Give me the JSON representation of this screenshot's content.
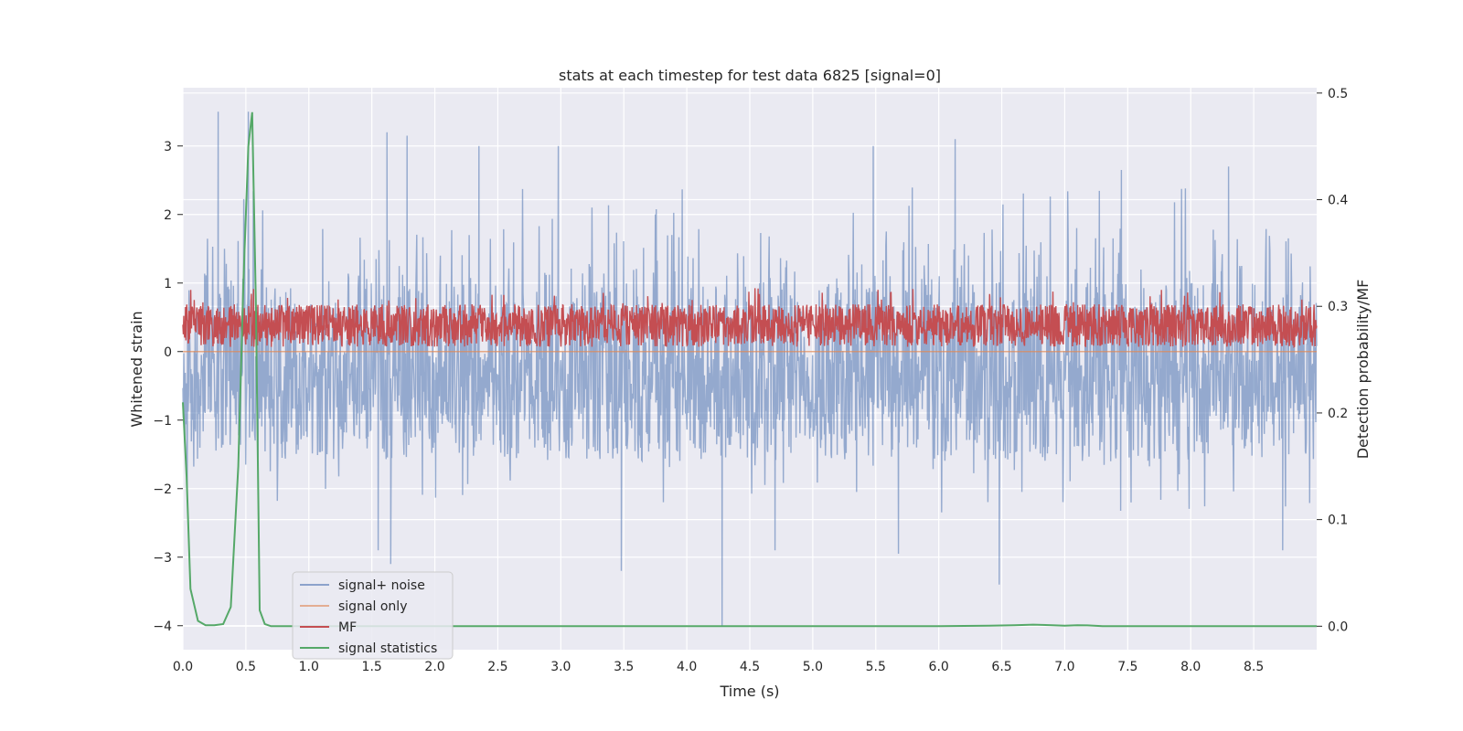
{
  "chart_data": {
    "type": "line",
    "title": "stats at each timestep for test data 6825 [signal=0]",
    "xlabel": "Time (s)",
    "ylabel_left": "Whitened strain",
    "ylabel_right": "Detection probability/MF",
    "xlim": [
      0.0,
      9.0
    ],
    "ylim_left": [
      -4.35,
      3.85
    ],
    "ylim_right": [
      -0.022,
      0.505
    ],
    "grid": true,
    "legend_position": "lower-left",
    "x_ticks": [
      "0.0",
      "0.5",
      "1.0",
      "1.5",
      "2.0",
      "2.5",
      "3.0",
      "3.5",
      "4.0",
      "4.5",
      "5.0",
      "5.5",
      "6.0",
      "6.5",
      "7.0",
      "7.5",
      "8.0",
      "8.5"
    ],
    "y_ticks_left": [
      "3",
      "2",
      "1",
      "0",
      "−1",
      "−2",
      "−3",
      "−4"
    ],
    "y_ticks_right": [
      "0.5",
      "0.4",
      "0.3",
      "0.2",
      "0.1",
      "0.0"
    ],
    "series": [
      {
        "name": "signal+ noise",
        "axis": "left",
        "color": "#4c72b0",
        "opacity": 0.55,
        "description_values": "dense noise centered near 0, mostly within [-1.7, 1.7], peaks up to 3.5 and down to -4.0",
        "band": [
          -1.7,
          1.7
        ],
        "spikes": [
          [
            0.28,
            3.5
          ],
          [
            1.62,
            3.2
          ],
          [
            1.78,
            3.15
          ],
          [
            4.28,
            -4.0
          ],
          [
            6.13,
            3.1
          ],
          [
            3.48,
            -3.2
          ],
          [
            6.48,
            -3.4
          ],
          [
            8.73,
            -2.9
          ],
          [
            0.52,
            3.5
          ],
          [
            2.35,
            3.0
          ],
          [
            2.98,
            3.0
          ],
          [
            5.48,
            3.0
          ],
          [
            7.45,
            2.65
          ],
          [
            8.3,
            2.7
          ],
          [
            1.55,
            -2.9
          ],
          [
            1.65,
            -3.1
          ],
          [
            5.68,
            -2.95
          ],
          [
            4.7,
            -2.9
          ]
        ]
      },
      {
        "name": "signal only",
        "axis": "left",
        "color": "#dd8452",
        "values_constant": 0.0
      },
      {
        "name": "MF",
        "axis": "right",
        "color": "#c44e52",
        "description_values": "noisy band between about 0.265 and 0.31 on the right axis, occasional peaks to 0.315",
        "band": [
          0.262,
          0.302
        ]
      },
      {
        "name": "signal statistics",
        "axis": "right",
        "color": "#55a868",
        "x": [
          0.0,
          0.03,
          0.06,
          0.12,
          0.18,
          0.25,
          0.32,
          0.38,
          0.44,
          0.48,
          0.52,
          0.55,
          0.58,
          0.61,
          0.65,
          0.7,
          1.0,
          2.0,
          3.0,
          4.0,
          5.0,
          6.0,
          6.4,
          6.6,
          6.75,
          6.9,
          7.0,
          7.1,
          7.18,
          7.3,
          8.0,
          9.0
        ],
        "y": [
          0.21,
          0.14,
          0.035,
          0.005,
          0.001,
          0.001,
          0.002,
          0.018,
          0.15,
          0.32,
          0.45,
          0.482,
          0.3,
          0.015,
          0.002,
          0.0,
          0.0,
          0.0,
          0.0,
          0.0,
          0.0,
          0.0,
          0.0005,
          0.001,
          0.0015,
          0.001,
          0.0005,
          0.001,
          0.0008,
          0.0,
          0.0,
          0.0
        ]
      }
    ]
  }
}
